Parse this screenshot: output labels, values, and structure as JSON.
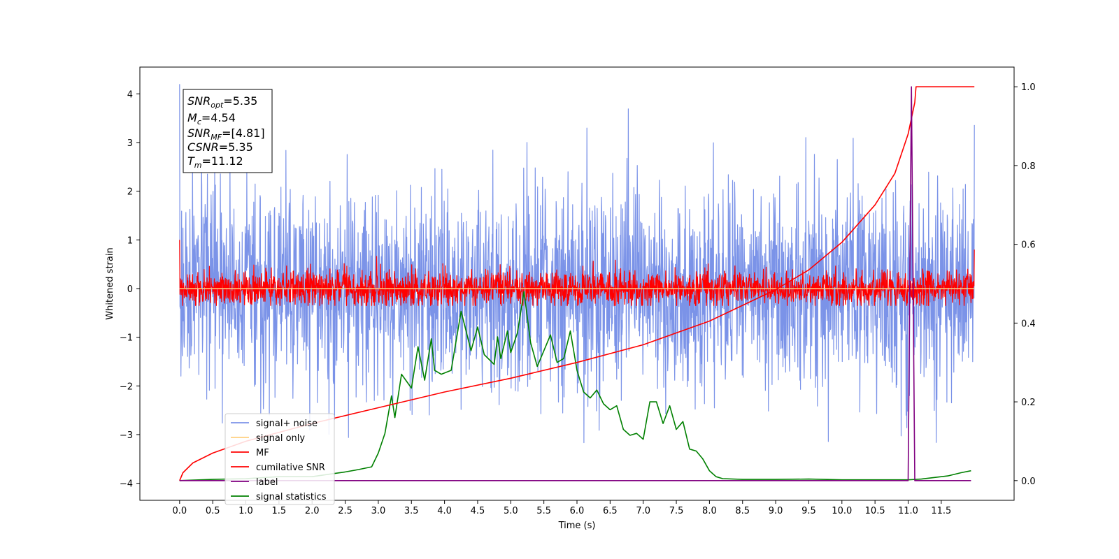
{
  "chart_data": {
    "type": "line",
    "xlabel": "Time (s)",
    "ylabel": "Whitened strain",
    "xlim": [
      -0.6,
      12.6
    ],
    "ylim": [
      -4.35,
      4.55
    ],
    "y2lim": [
      -0.05,
      1.05
    ],
    "x_ticks": [
      "0.0",
      "0.5",
      "1.0",
      "1.5",
      "2.0",
      "2.5",
      "3.0",
      "3.5",
      "4.0",
      "4.5",
      "5.0",
      "5.5",
      "6.0",
      "6.5",
      "7.0",
      "7.5",
      "8.0",
      "8.5",
      "9.0",
      "9.5",
      "10.0",
      "10.5",
      "11.0",
      "11.5"
    ],
    "y_ticks": [
      "4",
      "3",
      "2",
      "1",
      "0",
      "−1",
      "−2",
      "−3",
      "−4"
    ],
    "y2_ticks": [
      "1.0",
      "0.8",
      "0.6",
      "0.4",
      "0.2",
      "0.0"
    ],
    "legend_position": "lower-left",
    "annotation": {
      "snr_opt": {
        "base": "SNR",
        "sub": "opt",
        "value": "=5.35"
      },
      "mc": {
        "base": "M",
        "sub": "c",
        "value": "=4.54"
      },
      "snr_mf": {
        "base": "SNR",
        "sub": "MF",
        "value": "=[4.81]"
      },
      "csnr": {
        "base": "CSNR",
        "value": "=5.35"
      },
      "tm": {
        "base": "T",
        "sub": "m",
        "value": "=11.12"
      }
    },
    "series": [
      {
        "name": "signal+ noise",
        "color": "#7b93e8",
        "axis": "left",
        "style": "noise",
        "x_range": [
          0.0,
          12.0
        ],
        "std": 1.0,
        "range": [
          -3.9,
          4.2
        ]
      },
      {
        "name": "signal only",
        "color": "#ffd080",
        "axis": "left",
        "style": "flat",
        "x": [
          0.0,
          12.0
        ],
        "values": [
          0.0,
          0.0
        ]
      },
      {
        "name": "MF",
        "color": "#ff0000",
        "axis": "left",
        "style": "noise",
        "x_range": [
          0.0,
          12.0
        ],
        "std": 0.18,
        "range": [
          -0.35,
          1.0
        ]
      },
      {
        "name": "cumilative SNR",
        "color": "#ff0000",
        "axis": "right",
        "x": [
          0.0,
          0.05,
          0.2,
          0.5,
          1.0,
          2.0,
          3.0,
          4.0,
          5.0,
          6.0,
          7.0,
          8.0,
          9.0,
          9.5,
          10.0,
          10.5,
          10.8,
          11.0,
          11.1,
          11.12,
          12.0
        ],
        "values": [
          0.0,
          0.02,
          0.045,
          0.07,
          0.1,
          0.145,
          0.185,
          0.225,
          0.26,
          0.3,
          0.345,
          0.405,
          0.485,
          0.535,
          0.605,
          0.7,
          0.78,
          0.88,
          0.96,
          1.0,
          1.0
        ]
      },
      {
        "name": "label",
        "color": "#800080",
        "axis": "right",
        "x": [
          0.0,
          11.0,
          11.05,
          11.1,
          11.12,
          11.15,
          11.2,
          11.95
        ],
        "values": [
          0.0,
          0.0,
          1.0,
          0.0,
          0.0,
          0.0,
          0.0,
          0.0
        ]
      },
      {
        "name": "signal statistics",
        "color": "#008000",
        "axis": "right",
        "x": [
          0.0,
          0.5,
          1.0,
          1.5,
          2.0,
          2.2,
          2.5,
          2.7,
          2.9,
          3.0,
          3.1,
          3.2,
          3.25,
          3.35,
          3.5,
          3.6,
          3.7,
          3.8,
          3.85,
          3.95,
          4.1,
          4.25,
          4.4,
          4.5,
          4.6,
          4.75,
          4.8,
          4.85,
          4.95,
          5.0,
          5.1,
          5.2,
          5.3,
          5.4,
          5.5,
          5.6,
          5.7,
          5.8,
          5.9,
          6.0,
          6.1,
          6.2,
          6.3,
          6.4,
          6.5,
          6.6,
          6.7,
          6.8,
          6.9,
          7.0,
          7.1,
          7.2,
          7.3,
          7.4,
          7.5,
          7.6,
          7.7,
          7.8,
          7.9,
          8.0,
          8.1,
          8.2,
          8.5,
          9.0,
          9.5,
          10.0,
          10.5,
          11.0,
          11.2,
          11.5,
          11.6,
          11.8,
          11.95
        ],
        "values": [
          0.0,
          0.003,
          0.005,
          0.01,
          0.01,
          0.015,
          0.022,
          0.028,
          0.035,
          0.07,
          0.12,
          0.215,
          0.16,
          0.27,
          0.235,
          0.34,
          0.255,
          0.36,
          0.28,
          0.27,
          0.28,
          0.43,
          0.33,
          0.39,
          0.32,
          0.295,
          0.365,
          0.31,
          0.38,
          0.325,
          0.375,
          0.48,
          0.35,
          0.29,
          0.33,
          0.37,
          0.3,
          0.31,
          0.38,
          0.28,
          0.225,
          0.21,
          0.23,
          0.195,
          0.18,
          0.19,
          0.13,
          0.115,
          0.12,
          0.105,
          0.2,
          0.2,
          0.145,
          0.19,
          0.13,
          0.15,
          0.08,
          0.075,
          0.055,
          0.025,
          0.01,
          0.005,
          0.003,
          0.003,
          0.004,
          0.002,
          0.002,
          0.002,
          0.004,
          0.01,
          0.012,
          0.02,
          0.025
        ]
      }
    ]
  }
}
